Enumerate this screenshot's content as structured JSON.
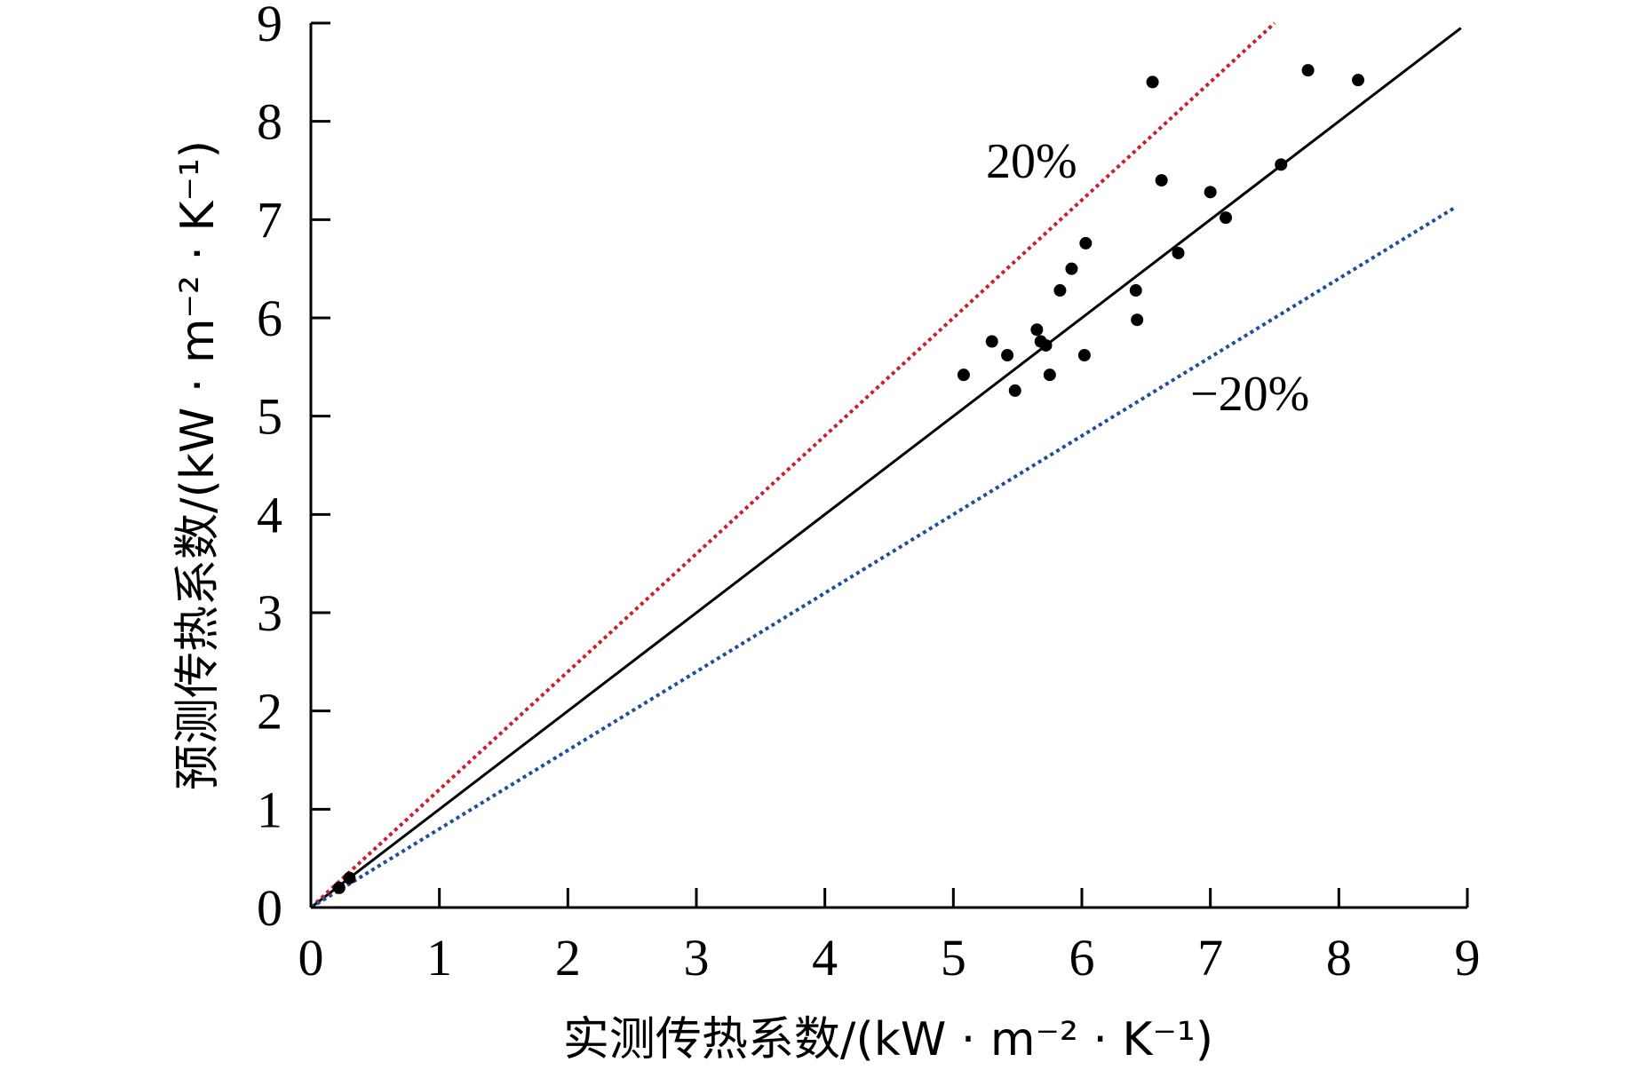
{
  "chart_data": {
    "type": "scatter",
    "title": "",
    "xlabel": "实测传热系数/(kW · m⁻² · K⁻¹)",
    "ylabel": "预测传热系数/(kW · m⁻² · K⁻¹)",
    "xlim": [
      0,
      9
    ],
    "ylim": [
      0,
      9
    ],
    "x_ticks": [
      "0",
      "1",
      "2",
      "3",
      "4",
      "5",
      "6",
      "7",
      "8",
      "9"
    ],
    "y_ticks": [
      "0",
      "1",
      "2",
      "3",
      "4",
      "5",
      "6",
      "7",
      "8",
      "9"
    ],
    "grid": false,
    "legend": "none",
    "reference_lines": [
      {
        "label": "",
        "slope": 1.0,
        "style": "solid",
        "color": "#000000",
        "x_end": 8.95
      },
      {
        "label": "20%",
        "slope": 1.2,
        "style": "dotted",
        "color": "#cc1f2b",
        "x_end": 7.5
      },
      {
        "label": "−20%",
        "slope": 0.8,
        "style": "dotted",
        "color": "#1f4f99",
        "x_end": 8.9
      }
    ],
    "points": [
      {
        "x": 5.08,
        "y": 5.42
      },
      {
        "x": 5.3,
        "y": 5.76
      },
      {
        "x": 5.42,
        "y": 5.62
      },
      {
        "x": 5.48,
        "y": 5.26
      },
      {
        "x": 5.65,
        "y": 5.88
      },
      {
        "x": 5.68,
        "y": 5.76
      },
      {
        "x": 5.72,
        "y": 5.72
      },
      {
        "x": 5.75,
        "y": 5.42
      },
      {
        "x": 5.83,
        "y": 6.28
      },
      {
        "x": 5.92,
        "y": 6.5
      },
      {
        "x": 6.02,
        "y": 5.62
      },
      {
        "x": 6.03,
        "y": 6.76
      },
      {
        "x": 6.42,
        "y": 6.28
      },
      {
        "x": 6.43,
        "y": 5.98
      },
      {
        "x": 6.55,
        "y": 8.4
      },
      {
        "x": 6.62,
        "y": 7.4
      },
      {
        "x": 6.75,
        "y": 6.66
      },
      {
        "x": 7.0,
        "y": 7.28
      },
      {
        "x": 7.12,
        "y": 7.02
      },
      {
        "x": 7.55,
        "y": 7.56
      },
      {
        "x": 7.76,
        "y": 8.52
      },
      {
        "x": 8.15,
        "y": 8.42
      },
      {
        "x": 0.22,
        "y": 0.2
      },
      {
        "x": 0.3,
        "y": 0.3
      }
    ]
  }
}
